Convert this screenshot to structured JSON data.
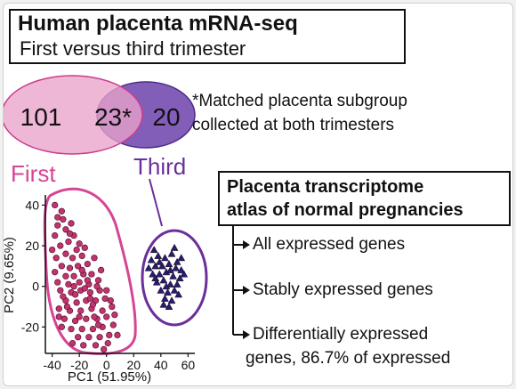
{
  "title": {
    "line1": "Human placenta mRNA-seq",
    "line2": "First versus third trimester"
  },
  "venn": {
    "left_count": "101",
    "overlap_count": "23*",
    "right_count": "20",
    "left_color": "#e9a3c9",
    "left_stroke": "#cc3c8a",
    "right_color": "#7b55b5",
    "right_stroke": "#4b2a87"
  },
  "footnote": {
    "line1": "*Matched placenta subgroup",
    "line2": "collected at both trimesters"
  },
  "groups": {
    "first_label": "First",
    "first_color": "#d64594",
    "third_label": "Third",
    "third_color": "#6a2f9a"
  },
  "atlas": {
    "line1": "Placenta transcriptome",
    "line2": "atlas of normal pregnancies",
    "items": [
      {
        "label": "All expressed genes"
      },
      {
        "label": "Stably expressed genes"
      },
      {
        "label": "Differentially expressed",
        "label2": "genes, 86.7% of expressed"
      }
    ]
  },
  "chart_data": {
    "type": "scatter",
    "xlabel": "PC1 (51.95%)",
    "ylabel": "PC2 (9.65%)",
    "xlim": [
      -45,
      65
    ],
    "ylim": [
      -33,
      45
    ],
    "xticks": [
      "-40",
      "-20",
      "0",
      "20",
      "40",
      "60"
    ],
    "yticks": [
      "40",
      "20",
      "0",
      "-20"
    ],
    "series": [
      {
        "name": "First",
        "marker": "circle",
        "color": "#c2336f",
        "points": [
          [
            -38,
            40
          ],
          [
            -33,
            37
          ],
          [
            -36,
            30
          ],
          [
            -30,
            28
          ],
          [
            -38,
            25
          ],
          [
            -34,
            20
          ],
          [
            -28,
            22
          ],
          [
            -24,
            25
          ],
          [
            -20,
            21
          ],
          [
            -30,
            16
          ],
          [
            -37,
            14
          ],
          [
            -25,
            14
          ],
          [
            -18,
            15
          ],
          [
            -33,
            10
          ],
          [
            -27,
            9
          ],
          [
            -21,
            10
          ],
          [
            -14,
            11
          ],
          [
            -38,
            7
          ],
          [
            -30,
            5
          ],
          [
            -24,
            5
          ],
          [
            -17,
            6
          ],
          [
            -11,
            6
          ],
          [
            -36,
            2
          ],
          [
            -28,
            1
          ],
          [
            -20,
            2
          ],
          [
            -13,
            1
          ],
          [
            -6,
            3
          ],
          [
            -34,
            -2
          ],
          [
            -26,
            -3
          ],
          [
            -19,
            -2
          ],
          [
            -12,
            -3
          ],
          [
            -5,
            -2
          ],
          [
            -30,
            -7
          ],
          [
            -22,
            -8
          ],
          [
            -15,
            -7
          ],
          [
            -8,
            -7
          ],
          [
            -1,
            -6
          ],
          [
            -35,
            -11
          ],
          [
            -27,
            -12
          ],
          [
            -19,
            -12
          ],
          [
            -11,
            -11
          ],
          [
            -3,
            -12
          ],
          [
            4,
            -10
          ],
          [
            -31,
            -16
          ],
          [
            -23,
            -17
          ],
          [
            -15,
            -16
          ],
          [
            -7,
            -16
          ],
          [
            0,
            -15
          ],
          [
            -26,
            -21
          ],
          [
            -18,
            -21
          ],
          [
            -10,
            -21
          ],
          [
            -3,
            -20
          ],
          [
            5,
            -19
          ],
          [
            -21,
            -25
          ],
          [
            -13,
            -25
          ],
          [
            -5,
            -25
          ],
          [
            2,
            -24
          ],
          [
            -17,
            -29
          ],
          [
            -8,
            -29
          ],
          [
            1,
            -28
          ],
          [
            -32,
            33
          ],
          [
            -26,
            31
          ],
          [
            -22,
            18
          ],
          [
            -16,
            19
          ],
          [
            -9,
            14
          ],
          [
            -32,
            -5
          ],
          [
            -16,
            -1
          ],
          [
            -9,
            -15
          ],
          [
            6,
            -14
          ],
          [
            -2,
            -31
          ],
          [
            -40,
            18
          ],
          [
            -35,
            -15
          ],
          [
            -25,
            -28
          ],
          [
            8,
            -24
          ],
          [
            -14,
            3
          ],
          [
            -23,
            -4
          ],
          [
            -29,
            -10
          ],
          [
            -6,
            -19
          ],
          [
            3,
            -7
          ],
          [
            -18,
            8
          ],
          [
            -10,
            -9
          ],
          [
            -27,
            26
          ],
          [
            -36,
            34
          ],
          [
            -12,
            -6
          ],
          [
            -20,
            -15
          ],
          [
            -4,
            8
          ],
          [
            -33,
            -20
          ],
          [
            -24,
            0
          ],
          [
            -7,
            0
          ],
          [
            0,
            -2
          ]
        ]
      },
      {
        "name": "Third",
        "marker": "triangle",
        "color": "#2b1a6e",
        "points": [
          [
            33,
            13
          ],
          [
            38,
            15
          ],
          [
            43,
            14
          ],
          [
            48,
            16
          ],
          [
            52,
            12
          ],
          [
            36,
            10
          ],
          [
            41,
            10
          ],
          [
            46,
            11
          ],
          [
            51,
            9
          ],
          [
            55,
            8
          ],
          [
            34,
            6
          ],
          [
            39,
            6
          ],
          [
            44,
            7
          ],
          [
            49,
            5
          ],
          [
            54,
            4
          ],
          [
            37,
            2
          ],
          [
            42,
            3
          ],
          [
            47,
            1
          ],
          [
            52,
            1
          ],
          [
            40,
            -2
          ],
          [
            45,
            -3
          ],
          [
            50,
            -2
          ],
          [
            43,
            -6
          ],
          [
            48,
            -7
          ],
          [
            46,
            -10
          ],
          [
            35,
            18
          ],
          [
            50,
            19
          ],
          [
            57,
            6
          ],
          [
            31,
            9
          ],
          [
            44,
            0
          ],
          [
            53,
            -4
          ],
          [
            39,
            12
          ],
          [
            47,
            8
          ],
          [
            42,
            -9
          ],
          [
            55,
            14
          ],
          [
            36,
            4
          ]
        ]
      }
    ]
  }
}
